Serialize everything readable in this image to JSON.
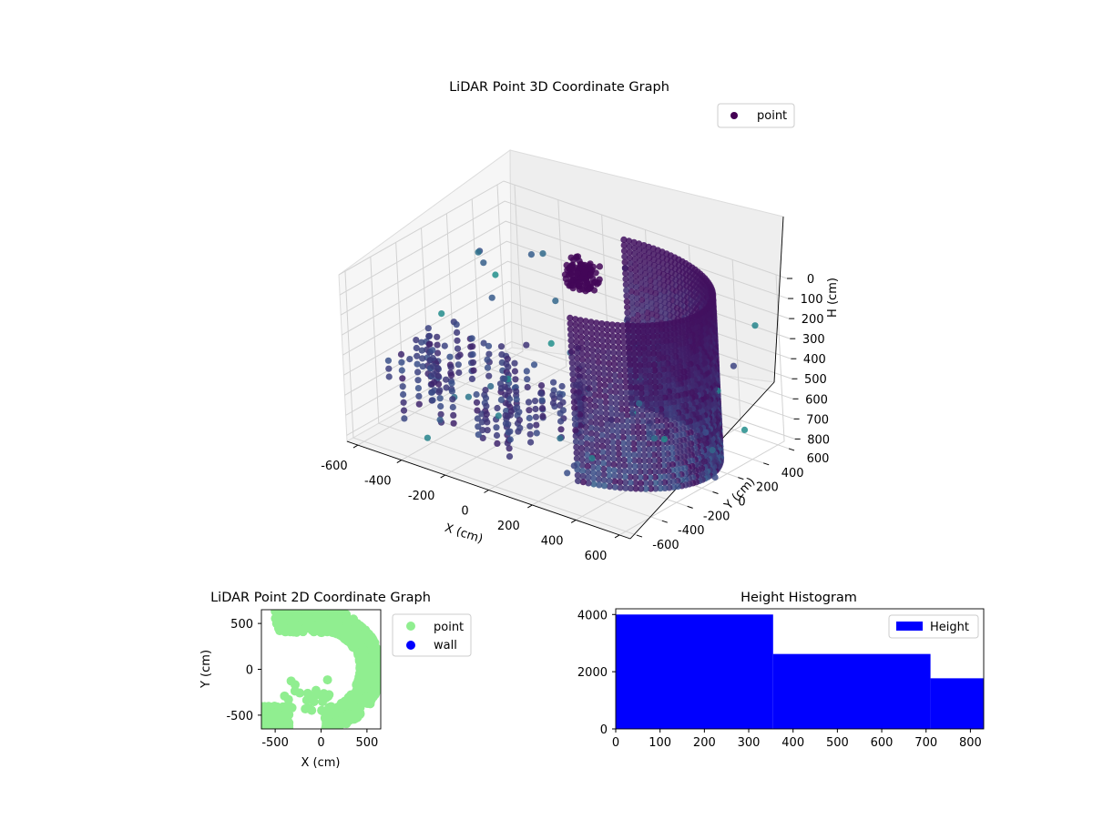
{
  "chart_data": [
    {
      "type": "scatter",
      "title": "LiDAR Point 3D Coordinate Graph",
      "xlabel": "X (cm)",
      "ylabel": "Y (cm)",
      "zlabel": "H (cm)",
      "xticks": [
        -600,
        -400,
        -200,
        0,
        200,
        400,
        600
      ],
      "yticks": [
        -600,
        -400,
        -200,
        0,
        200,
        400,
        600
      ],
      "zticks": [
        0,
        100,
        200,
        300,
        400,
        500,
        600,
        700,
        800
      ],
      "xlim": [
        -650,
        650
      ],
      "ylim": [
        -650,
        650
      ],
      "zlim": [
        0,
        830
      ],
      "z_inverted": true,
      "colormap": "viridis",
      "grid": true,
      "legend": {
        "placement": "top-right",
        "entries": [
          {
            "label": "point",
            "color": "#440154"
          }
        ]
      }
    },
    {
      "type": "scatter",
      "title": "LiDAR Point 2D Coordinate Graph",
      "xlabel": "X (cm)",
      "ylabel": "Y (cm)",
      "xticks": [
        -500,
        0,
        500
      ],
      "yticks": [
        500,
        0,
        -500
      ],
      "xlim": [
        -650,
        650
      ],
      "ylim": [
        -650,
        650
      ],
      "series": [
        {
          "name": "point",
          "color": "#90ee90"
        },
        {
          "name": "wall",
          "color": "#0000ff"
        }
      ],
      "legend": {
        "placement": "outside-right"
      }
    },
    {
      "type": "bar",
      "title": "Height Histogram",
      "bins": [
        [
          0,
          355
        ],
        [
          355,
          710
        ],
        [
          710,
          830
        ]
      ],
      "values": [
        4000,
        2620,
        1770
      ],
      "xticks": [
        0,
        100,
        200,
        300,
        400,
        500,
        600,
        700,
        800
      ],
      "yticks": [
        0,
        2000,
        4000
      ],
      "xlim": [
        0,
        830
      ],
      "ylim": [
        0,
        4200
      ],
      "color": "#0000ff",
      "series": [
        {
          "name": "Height",
          "color": "#0000ff"
        }
      ],
      "legend": {
        "placement": "top-right"
      }
    }
  ]
}
